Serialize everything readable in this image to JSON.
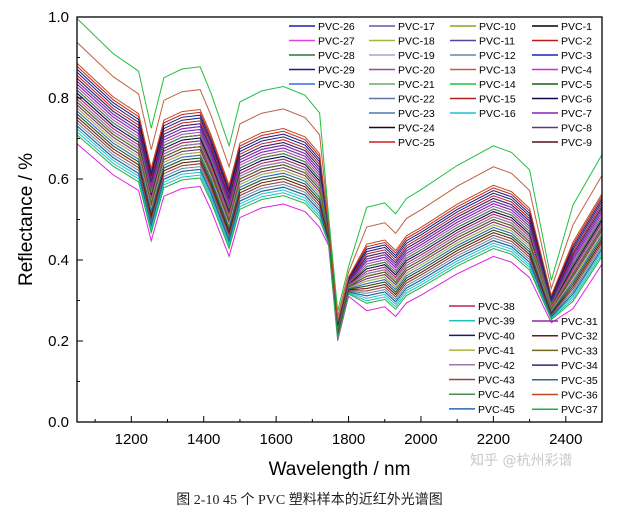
{
  "caption": "图 2-10 45 个 PVC 塑料样本的近红外光谱图",
  "watermark": "知乎 @杭州彩谱",
  "chart_data": {
    "type": "line",
    "xlabel": "Wavelength / nm",
    "ylabel": "Reflectance / %",
    "xlim": [
      1050,
      2500
    ],
    "ylim": [
      0.0,
      1.0
    ],
    "xticks": [
      1200,
      1400,
      1600,
      1800,
      2000,
      2200,
      2400
    ],
    "yticks": [
      0.0,
      0.2,
      0.4,
      0.6,
      0.8,
      1.0
    ],
    "ytick_labels": [
      "0.0",
      "0.2",
      "0.4",
      "0.6",
      "0.8",
      "1.0"
    ],
    "grid": false,
    "legend_placement": [
      "top-right",
      "bottom-right"
    ],
    "x": [
      1050,
      1150,
      1220,
      1255,
      1290,
      1340,
      1390,
      1420,
      1470,
      1500,
      1560,
      1620,
      1680,
      1720,
      1745,
      1770,
      1800,
      1850,
      1900,
      1930,
      1960,
      2000,
      2100,
      2200,
      2250,
      2300,
      2360,
      2420,
      2500
    ],
    "base_shape": [
      0.79,
      0.71,
      0.67,
      0.54,
      0.655,
      0.675,
      0.68,
      0.62,
      0.5,
      0.6,
      0.625,
      0.635,
      0.615,
      0.575,
      0.46,
      0.225,
      0.335,
      0.36,
      0.37,
      0.345,
      0.38,
      0.4,
      0.455,
      0.5,
      0.485,
      0.445,
      0.28,
      0.365,
      0.48
    ],
    "series": [
      {
        "name": "PVC-26",
        "color": "#1f1fb4",
        "offset": 0.035
      },
      {
        "name": "PVC-27",
        "color": "#e040e0",
        "offset": -0.02
      },
      {
        "name": "PVC-28",
        "color": "#2a7a2a",
        "offset": 0.0
      },
      {
        "name": "PVC-29",
        "color": "#1a1a8c",
        "offset": 0.05
      },
      {
        "name": "PVC-30",
        "color": "#3a6ad8",
        "offset": 0.01
      },
      {
        "name": "PVC-17",
        "color": "#5c5cb0",
        "offset": 0.02
      },
      {
        "name": "PVC-18",
        "color": "#a8b040",
        "offset": -0.005
      },
      {
        "name": "PVC-19",
        "color": "#b0a0c8",
        "offset": -0.015
      },
      {
        "name": "PVC-20",
        "color": "#9a4a9a",
        "offset": 0.025
      },
      {
        "name": "PVC-21",
        "color": "#6aa86a",
        "offset": -0.03
      },
      {
        "name": "PVC-22",
        "color": "#5a78a8",
        "offset": 0.015
      },
      {
        "name": "PVC-23",
        "color": "#4a7ab0",
        "offset": -0.01
      },
      {
        "name": "PVC-24",
        "color": "#111111",
        "offset": 0.005
      },
      {
        "name": "PVC-25",
        "color": "#cc2020",
        "offset": 0.06
      },
      {
        "name": "PVC-10",
        "color": "#9c9c20",
        "offset": -0.025
      },
      {
        "name": "PVC-11",
        "color": "#4a4a9a",
        "offset": 0.03
      },
      {
        "name": "PVC-12",
        "color": "#5a8ab0",
        "offset": -0.035
      },
      {
        "name": "PVC-13",
        "color": "#c06040",
        "offset": 0.1
      },
      {
        "name": "PVC-14",
        "color": "#20c040",
        "offset": 0.14
      },
      {
        "name": "PVC-15",
        "color": "#b02020",
        "offset": 0.04
      },
      {
        "name": "PVC-16",
        "color": "#20c0d0",
        "offset": -0.045
      },
      {
        "name": "PVC-1",
        "color": "#000000",
        "offset": 0.0
      },
      {
        "name": "PVC-2",
        "color": "#c01818",
        "offset": 0.045
      },
      {
        "name": "PVC-3",
        "color": "#2020c8",
        "offset": -0.04
      },
      {
        "name": "PVC-4",
        "color": "#e020e0",
        "offset": -0.07
      },
      {
        "name": "PVC-5",
        "color": "#106010",
        "offset": -0.02
      },
      {
        "name": "PVC-6",
        "color": "#0a0a50",
        "offset": 0.015
      },
      {
        "name": "PVC-7",
        "color": "#8a20c0",
        "offset": 0.03
      },
      {
        "name": "PVC-8",
        "color": "#7a2a7a",
        "offset": -0.005
      },
      {
        "name": "PVC-9",
        "color": "#5a1010",
        "offset": 0.02
      },
      {
        "name": "PVC-38",
        "color": "#c02060",
        "offset": 0.01
      },
      {
        "name": "PVC-39",
        "color": "#20c0c0",
        "offset": -0.05
      },
      {
        "name": "PVC-40",
        "color": "#1a1a6a",
        "offset": 0.055
      },
      {
        "name": "PVC-41",
        "color": "#b0b040",
        "offset": -0.01
      },
      {
        "name": "PVC-42",
        "color": "#9a7ab0",
        "offset": 0.005
      },
      {
        "name": "PVC-43",
        "color": "#a04040",
        "offset": -0.03
      },
      {
        "name": "PVC-44",
        "color": "#4a8a4a",
        "offset": 0.02
      },
      {
        "name": "PVC-45",
        "color": "#2a6ab0",
        "offset": -0.015
      },
      {
        "name": "PVC-31",
        "color": "#8a2aa0",
        "offset": 0.035
      },
      {
        "name": "PVC-32",
        "color": "#6a1a1a",
        "offset": -0.025
      },
      {
        "name": "PVC-33",
        "color": "#6a6a20",
        "offset": 0.0
      },
      {
        "name": "PVC-34",
        "color": "#2a2a7a",
        "offset": 0.04
      },
      {
        "name": "PVC-35",
        "color": "#2a6a8a",
        "offset": -0.04
      },
      {
        "name": "PVC-36",
        "color": "#c04a20",
        "offset": 0.065
      },
      {
        "name": "PVC-37",
        "color": "#20b040",
        "offset": -0.055
      }
    ]
  }
}
